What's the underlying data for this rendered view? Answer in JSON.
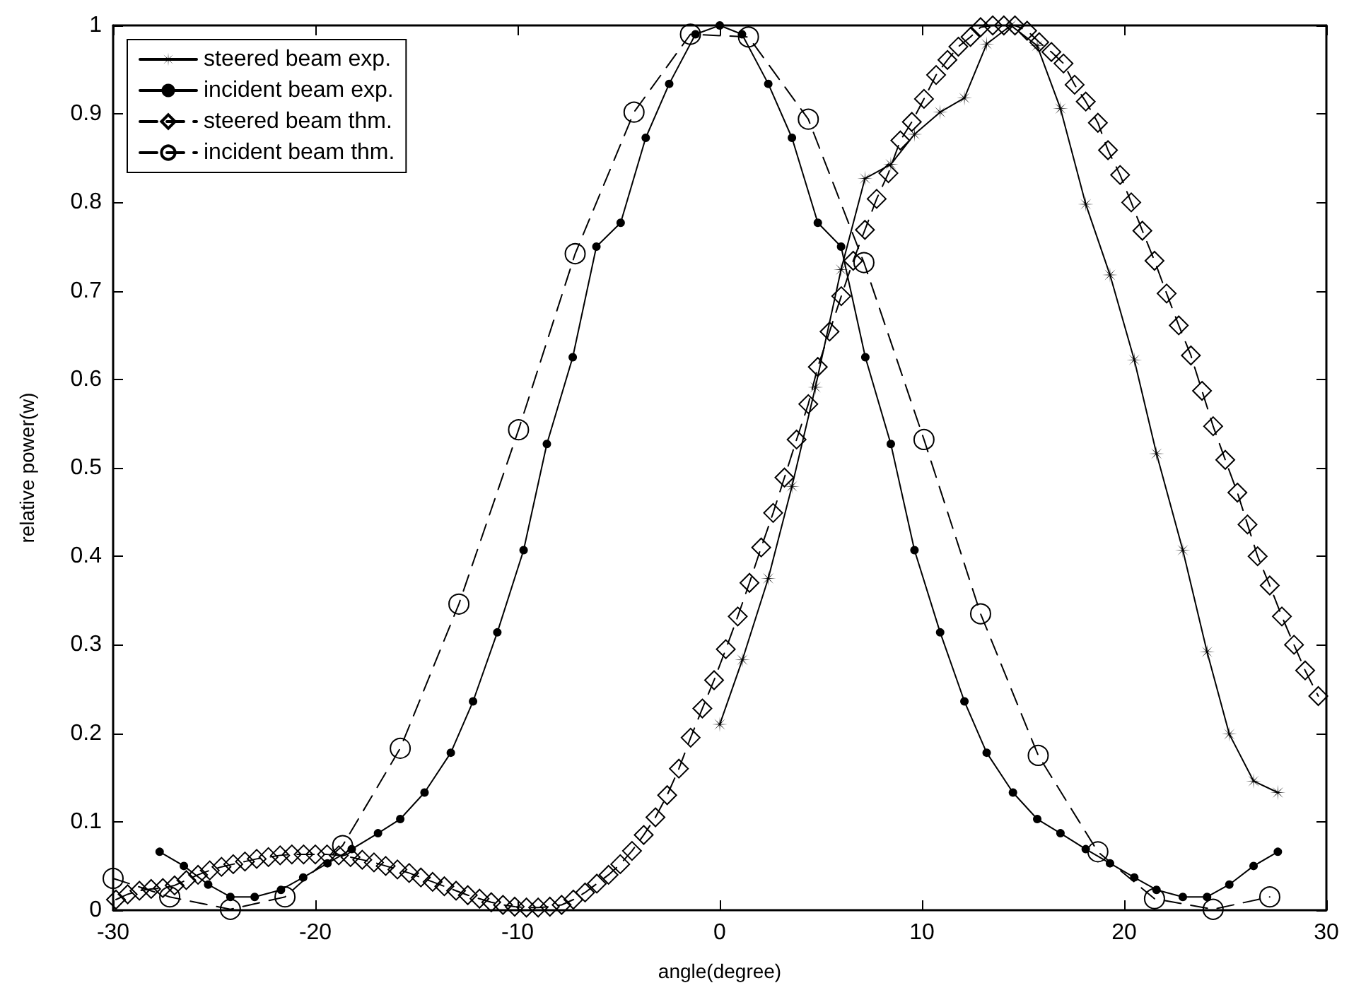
{
  "chart_data": {
    "type": "line",
    "xlabel": "angle(degree)",
    "ylabel": "relative power(w)",
    "xlim": [
      -30,
      30
    ],
    "xticks": [
      -30,
      -20,
      -10,
      0,
      10,
      20,
      30
    ],
    "ylim": [
      0,
      1
    ],
    "yticks": [
      0,
      0.1,
      0.2,
      0.3,
      0.4,
      0.5,
      0.6,
      0.7,
      0.8,
      0.9,
      1
    ],
    "grid": false,
    "legend": "top left",
    "series": [
      {
        "name": "steered beam exp.",
        "color": "#000000",
        "marker": "star",
        "line_style": "solid",
        "x": [
          0,
          1.12,
          2.4,
          3.57,
          4.73,
          6.0,
          7.18,
          8.46,
          9.63,
          10.9,
          12.1,
          13.2,
          14.4,
          15.7,
          16.85,
          18.1,
          19.3,
          20.5,
          21.6,
          22.9,
          24.1,
          25.2,
          26.4,
          27.6
        ],
        "values": [
          0.21,
          0.283,
          0.375,
          0.479,
          0.591,
          0.724,
          0.827,
          0.843,
          0.877,
          0.902,
          0.918,
          0.979,
          1.0,
          0.977,
          0.906,
          0.798,
          0.718,
          0.622,
          0.516,
          0.407,
          0.292,
          0.199,
          0.146,
          0.133
        ]
      },
      {
        "name": "incident beam exp.",
        "color": "#000000",
        "marker": "point",
        "line_style": "solid",
        "x": [
          -27.7,
          -26.5,
          -25.3,
          -24.2,
          -23.0,
          -21.7,
          -20.6,
          -19.4,
          -18.2,
          -16.9,
          -15.8,
          -14.6,
          -13.3,
          -12.2,
          -11.0,
          -9.7,
          -8.55,
          -7.27,
          -6.1,
          -4.9,
          -3.66,
          -2.5,
          -1.2,
          0,
          1.1,
          2.4,
          3.57,
          4.85,
          6.0,
          7.2,
          8.46,
          9.63,
          10.9,
          12.1,
          13.2,
          14.5,
          15.7,
          16.85,
          18.1,
          19.3,
          20.5,
          21.6,
          22.9,
          24.1,
          25.2,
          26.4,
          27.6
        ],
        "values": [
          0.066,
          0.05,
          0.029,
          0.015,
          0.015,
          0.023,
          0.037,
          0.053,
          0.069,
          0.087,
          0.103,
          0.133,
          0.178,
          0.236,
          0.314,
          0.407,
          0.527,
          0.625,
          0.75,
          0.777,
          0.873,
          0.934,
          0.99,
          1.0,
          0.99,
          0.934,
          0.873,
          0.777,
          0.75,
          0.625,
          0.527,
          0.407,
          0.314,
          0.236,
          0.178,
          0.133,
          0.103,
          0.087,
          0.069,
          0.053,
          0.037,
          0.023,
          0.015,
          0.015,
          0.029,
          0.05,
          0.066
        ]
      },
      {
        "name": "steered beam thm.",
        "color": "#000000",
        "marker": "diamond",
        "line_style": "dashed",
        "x": [
          -29.86,
          -29.28,
          -28.7,
          -28.12,
          -27.54,
          -26.96,
          -26.38,
          -25.8,
          -25.22,
          -24.64,
          -24.06,
          -23.48,
          -22.9,
          -22.32,
          -21.74,
          -21.16,
          -20.58,
          -20.0,
          -19.42,
          -18.84,
          -18.26,
          -17.68,
          -17.1,
          -16.52,
          -15.94,
          -15.36,
          -14.78,
          -14.2,
          -13.62,
          -13.04,
          -12.46,
          -11.88,
          -11.3,
          -10.72,
          -10.14,
          -9.56,
          -8.98,
          -8.4,
          -7.82,
          -7.24,
          -6.66,
          -6.08,
          -5.5,
          -4.92,
          -4.34,
          -3.76,
          -3.18,
          -2.6,
          -2.02,
          -1.44,
          -0.86,
          -0.28,
          0.3,
          0.89,
          1.47,
          2.05,
          2.64,
          3.2,
          3.8,
          4.38,
          4.85,
          5.43,
          6.01,
          6.6,
          7.18,
          7.76,
          8.34,
          8.93,
          9.5,
          10.1,
          10.7,
          11.26,
          11.8,
          12.4,
          12.9,
          13.5,
          14.05,
          14.6,
          15.2,
          15.8,
          16.4,
          17.0,
          17.55,
          18.1,
          18.7,
          19.2,
          19.8,
          20.35,
          20.9,
          21.5,
          22.1,
          22.7,
          23.3,
          23.85,
          24.4,
          25.0,
          25.6,
          26.1,
          26.6,
          27.2,
          27.8,
          28.4,
          28.95,
          29.6
        ],
        "values": [
          0.012,
          0.018,
          0.022,
          0.024,
          0.025,
          0.028,
          0.034,
          0.04,
          0.045,
          0.049,
          0.052,
          0.055,
          0.058,
          0.06,
          0.062,
          0.063,
          0.063,
          0.063,
          0.063,
          0.062,
          0.06,
          0.057,
          0.054,
          0.05,
          0.046,
          0.042,
          0.037,
          0.032,
          0.027,
          0.022,
          0.017,
          0.013,
          0.009,
          0.006,
          0.004,
          0.003,
          0.003,
          0.004,
          0.006,
          0.012,
          0.02,
          0.03,
          0.04,
          0.052,
          0.067,
          0.085,
          0.105,
          0.13,
          0.16,
          0.195,
          0.228,
          0.26,
          0.295,
          0.332,
          0.37,
          0.41,
          0.449,
          0.489,
          0.532,
          0.572,
          0.614,
          0.654,
          0.694,
          0.734,
          0.769,
          0.804,
          0.833,
          0.87,
          0.891,
          0.917,
          0.944,
          0.961,
          0.976,
          0.987,
          0.998,
          1.0,
          1.0,
          1.0,
          0.994,
          0.981,
          0.97,
          0.957,
          0.933,
          0.914,
          0.89,
          0.859,
          0.831,
          0.8,
          0.768,
          0.734,
          0.697,
          0.661,
          0.627,
          0.587,
          0.547,
          0.509,
          0.472,
          0.436,
          0.4,
          0.367,
          0.332,
          0.3,
          0.271,
          0.242
        ]
      },
      {
        "name": "incident beam thm.",
        "color": "#000000",
        "marker": "circle",
        "line_style": "dashed",
        "x": [
          -30,
          -27.2,
          -24.2,
          -21.5,
          -18.65,
          -15.8,
          -12.9,
          -9.95,
          -7.15,
          -4.24,
          -1.45,
          1.42,
          4.38,
          7.13,
          10.1,
          12.9,
          15.75,
          18.7,
          21.5,
          24.4,
          27.2
        ],
        "values": [
          0.036,
          0.015,
          0.001,
          0.015,
          0.073,
          0.183,
          0.346,
          0.543,
          0.742,
          0.902,
          0.99,
          0.987,
          0.894,
          0.732,
          0.532,
          0.335,
          0.175,
          0.066,
          0.013,
          0.001,
          0.015
        ]
      }
    ]
  }
}
